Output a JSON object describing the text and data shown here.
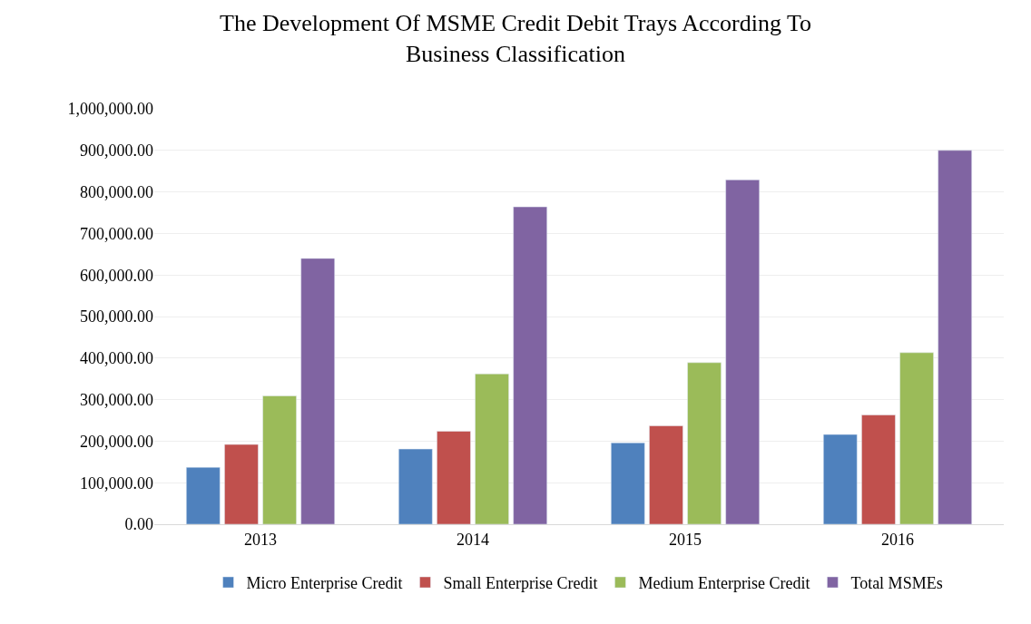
{
  "chart_data": {
    "type": "bar",
    "title": "The Development Of MSME Credit Debit Trays According To Business Classification",
    "categories": [
      "2013",
      "2014",
      "2015",
      "2016"
    ],
    "series": [
      {
        "name": "Micro Enterprise Credit",
        "color": "#4f81bd",
        "values": [
          137000,
          181000,
          196000,
          216000
        ]
      },
      {
        "name": "Small Enterprise Credit",
        "color": "#c0504d",
        "values": [
          192000,
          224000,
          237000,
          263000
        ]
      },
      {
        "name": "Medium Enterprise Credit",
        "color": "#9bbb59",
        "values": [
          309000,
          362000,
          389000,
          413000
        ]
      },
      {
        "name": "Total MSMEs",
        "color": "#8064a2",
        "values": [
          640000,
          764000,
          829000,
          900000
        ]
      }
    ],
    "ylim": [
      0,
      1000000
    ],
    "yticks": [
      {
        "value": 0,
        "label": "0.00"
      },
      {
        "value": 100000,
        "label": "100,000.00"
      },
      {
        "value": 200000,
        "label": "200,000.00"
      },
      {
        "value": 300000,
        "label": "300,000.00"
      },
      {
        "value": 400000,
        "label": "400,000.00"
      },
      {
        "value": 500000,
        "label": "500,000.00"
      },
      {
        "value": 600000,
        "label": "600,000.00"
      },
      {
        "value": 700000,
        "label": "700,000.00"
      },
      {
        "value": 800000,
        "label": "800,000.00"
      },
      {
        "value": 900000,
        "label": "900,000.00"
      },
      {
        "value": 1000000,
        "label": "1,000,000.00"
      }
    ],
    "grid": "y",
    "legend": "bottom"
  }
}
